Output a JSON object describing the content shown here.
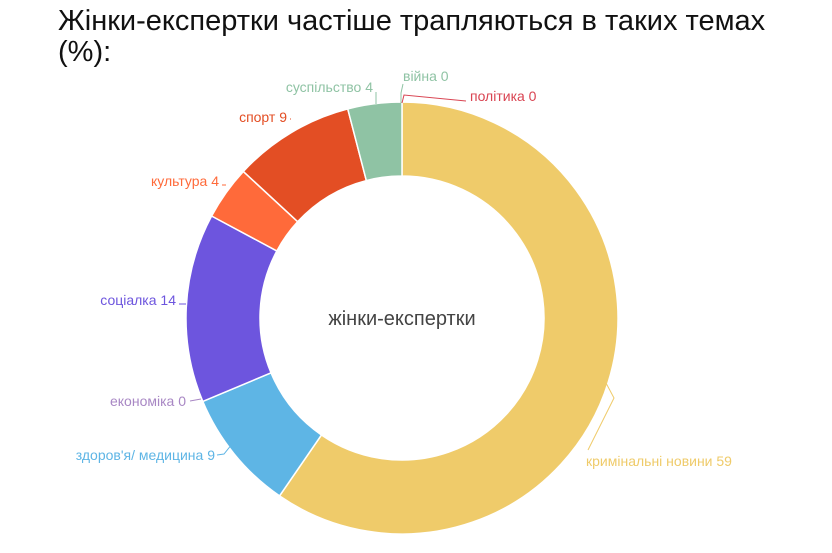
{
  "title": "Жінки-експертки частіше трапляються в таких темах (%):",
  "chart_data": {
    "type": "pie",
    "variant": "donut",
    "center_label": "жінки-експертки",
    "slices": [
      {
        "label": "кримінальні новини",
        "value": 59,
        "display": "кримінальні новини 59",
        "color": "#EFCB6A"
      },
      {
        "label": "здоров'я/ медицина",
        "value": 9,
        "display": "здоров'я/ медицина 9",
        "color": "#5EB5E5"
      },
      {
        "label": "економіка",
        "value": 0,
        "display": "економіка 0",
        "color": "#A887C4"
      },
      {
        "label": "соціалка",
        "value": 14,
        "display": "соціалка 14",
        "color": "#6D55DE"
      },
      {
        "label": "культура",
        "value": 4,
        "display": "культура 4",
        "color": "#FF6A3A"
      },
      {
        "label": "спорт",
        "value": 9,
        "display": "спорт 9",
        "color": "#E34E24"
      },
      {
        "label": "суспільство",
        "value": 4,
        "display": "суспільство 4",
        "color": "#8FC3A4"
      },
      {
        "label": "війна",
        "value": 0,
        "display": "війна 0",
        "color": "#8FC3A4"
      },
      {
        "label": "політика",
        "value": 0,
        "display": "політика 0",
        "color": "#D94452"
      }
    ]
  }
}
